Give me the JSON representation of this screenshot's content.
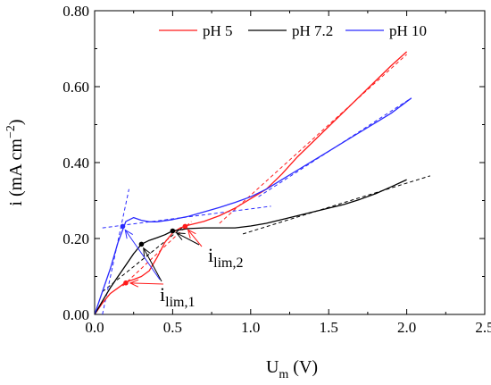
{
  "chart_data": {
    "type": "line",
    "xlabel": "U",
    "xlabel_sub": "m",
    "xlabel_unit": " (V)",
    "ylabel": "i (mA cm",
    "ylabel_sup": "−2",
    "ylabel_end": ")",
    "xlim": [
      0,
      2.5
    ],
    "ylim": [
      0,
      0.8
    ],
    "x_ticks": [
      0.0,
      0.5,
      1.0,
      1.5,
      2.0,
      2.5
    ],
    "x_tick_labels": [
      "0.0",
      "0.5",
      "1.0",
      "1.5",
      "2.0",
      "2.5"
    ],
    "y_ticks": [
      0.0,
      0.2,
      0.4,
      0.6,
      0.8
    ],
    "y_tick_labels": [
      "0.00",
      "0.20",
      "0.40",
      "0.60",
      "0.80"
    ],
    "grid": false,
    "legend_position": "top-right",
    "series": [
      {
        "name": "pH 5",
        "color": "#ff1a1a",
        "x": [
          0.0,
          0.05,
          0.1,
          0.15,
          0.2,
          0.25,
          0.3,
          0.35,
          0.4,
          0.45,
          0.5,
          0.55,
          0.6,
          0.7,
          0.8,
          0.9,
          1.0,
          1.1,
          1.2,
          1.3,
          1.4,
          1.5,
          1.6,
          1.7,
          1.8,
          1.9,
          2.0
        ],
        "y": [
          0.0,
          0.03,
          0.055,
          0.07,
          0.085,
          0.092,
          0.1,
          0.115,
          0.15,
          0.19,
          0.215,
          0.228,
          0.235,
          0.245,
          0.26,
          0.28,
          0.305,
          0.33,
          0.37,
          0.415,
          0.455,
          0.495,
          0.535,
          0.575,
          0.615,
          0.655,
          0.692
        ],
        "fits": [
          {
            "x": [
              0.18,
              0.62
            ],
            "y": [
              0.075,
              0.245
            ]
          },
          {
            "x": [
              0.8,
              2.0
            ],
            "y": [
              0.24,
              0.685
            ]
          }
        ],
        "markers": [
          {
            "x": 0.2,
            "y": 0.083
          },
          {
            "x": 0.58,
            "y": 0.232
          }
        ]
      },
      {
        "name": "pH 7.2",
        "color": "#000000",
        "x": [
          0.0,
          0.05,
          0.1,
          0.15,
          0.2,
          0.25,
          0.3,
          0.35,
          0.4,
          0.45,
          0.5,
          0.6,
          0.7,
          0.8,
          0.9,
          1.0,
          1.1,
          1.2,
          1.3,
          1.4,
          1.5,
          1.6,
          1.7,
          1.8,
          1.9,
          2.0
        ],
        "y": [
          0.0,
          0.035,
          0.07,
          0.1,
          0.13,
          0.16,
          0.185,
          0.195,
          0.202,
          0.21,
          0.22,
          0.226,
          0.228,
          0.228,
          0.228,
          0.233,
          0.24,
          0.25,
          0.26,
          0.27,
          0.28,
          0.29,
          0.303,
          0.318,
          0.336,
          0.355
        ],
        "fits": [
          {
            "x": [
              0.05,
              0.58
            ],
            "y": [
              0.06,
              0.235
            ]
          },
          {
            "x": [
              0.95,
              2.15
            ],
            "y": [
              0.212,
              0.365
            ]
          }
        ],
        "markers": [
          {
            "x": 0.3,
            "y": 0.185
          },
          {
            "x": 0.5,
            "y": 0.22
          }
        ]
      },
      {
        "name": "pH 10",
        "color": "#2a2aff",
        "x": [
          0.0,
          0.05,
          0.1,
          0.15,
          0.2,
          0.25,
          0.3,
          0.35,
          0.4,
          0.5,
          0.6,
          0.7,
          0.8,
          0.9,
          1.0,
          1.1,
          1.2,
          1.3,
          1.4,
          1.5,
          1.6,
          1.7,
          1.8,
          1.9,
          2.03
        ],
        "y": [
          0.0,
          0.06,
          0.12,
          0.19,
          0.245,
          0.255,
          0.248,
          0.244,
          0.244,
          0.25,
          0.258,
          0.27,
          0.282,
          0.295,
          0.31,
          0.33,
          0.355,
          0.38,
          0.405,
          0.43,
          0.455,
          0.48,
          0.505,
          0.53,
          0.57
        ],
        "fits": [
          {
            "x": [
              0.05,
              0.22
            ],
            "y": [
              0.0,
              0.33
            ]
          },
          {
            "x": [
              0.05,
              1.13
            ],
            "y": [
              0.228,
              0.285
            ]
          },
          {
            "x": [
              1.05,
              2.03
            ],
            "y": [
              0.31,
              0.57
            ]
          }
        ],
        "markers": [
          {
            "x": 0.18,
            "y": 0.232
          }
        ]
      }
    ],
    "annotations": [
      {
        "main": "i",
        "sub": "lim,1"
      },
      {
        "main": "i",
        "sub": "lim,2"
      }
    ]
  }
}
